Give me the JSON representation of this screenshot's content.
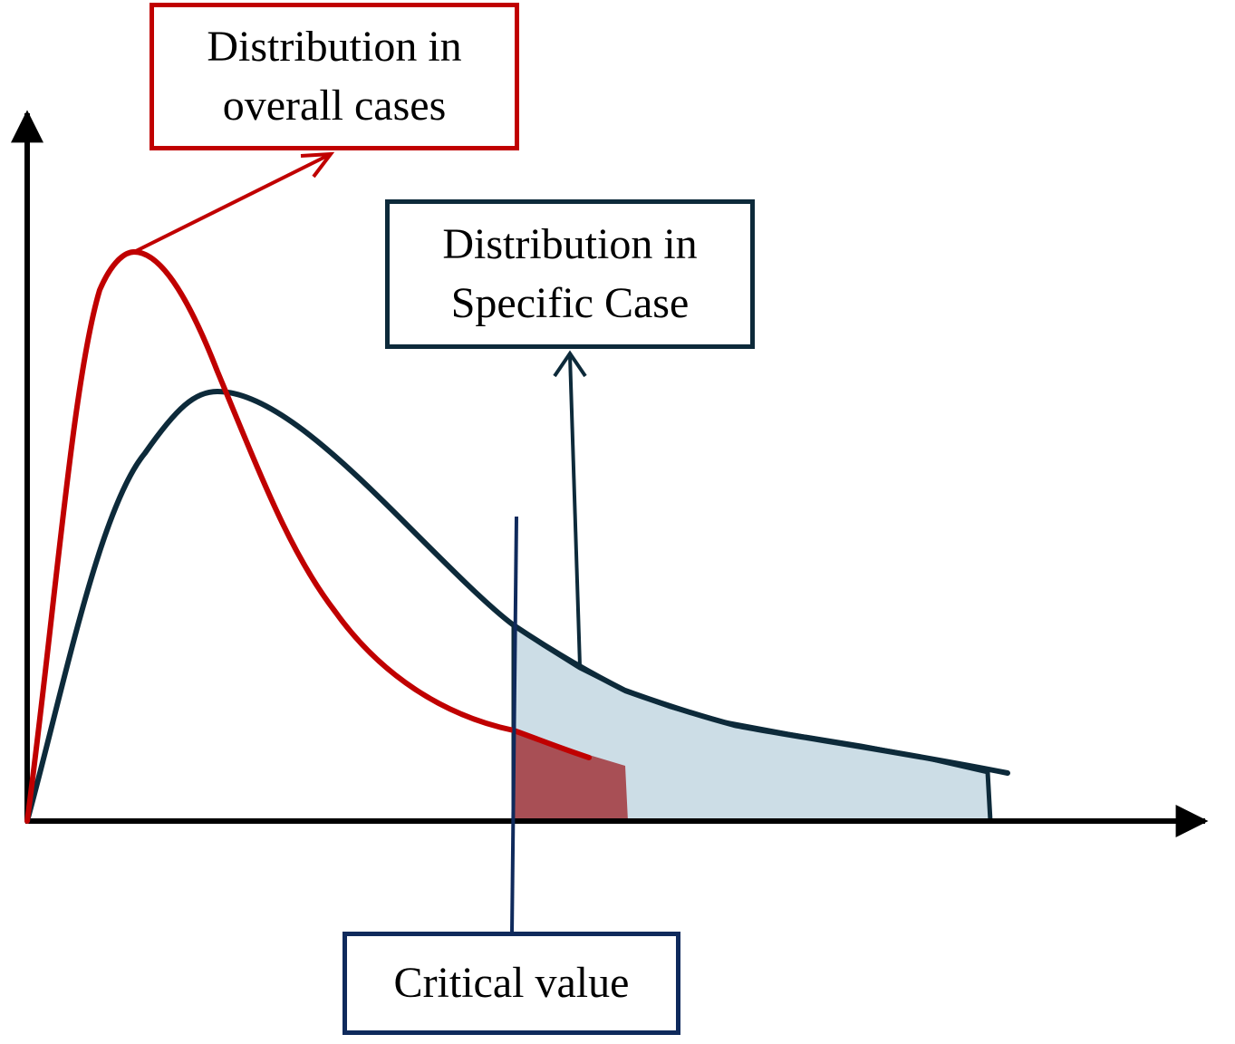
{
  "labels": {
    "overall": {
      "line1": "Distribution in",
      "line2": "overall cases"
    },
    "specific": {
      "line1": "Distribution in",
      "line2": "Specific Case"
    },
    "critical": "Critical value"
  },
  "colors": {
    "overall_curve": "#c00000",
    "specific_curve": "#0d2a3a",
    "critical_line": "#0f2a5c",
    "specific_tail_fill": "#ccdde6",
    "overall_tail_fill": "#a84f55",
    "axes": "#000000"
  }
}
